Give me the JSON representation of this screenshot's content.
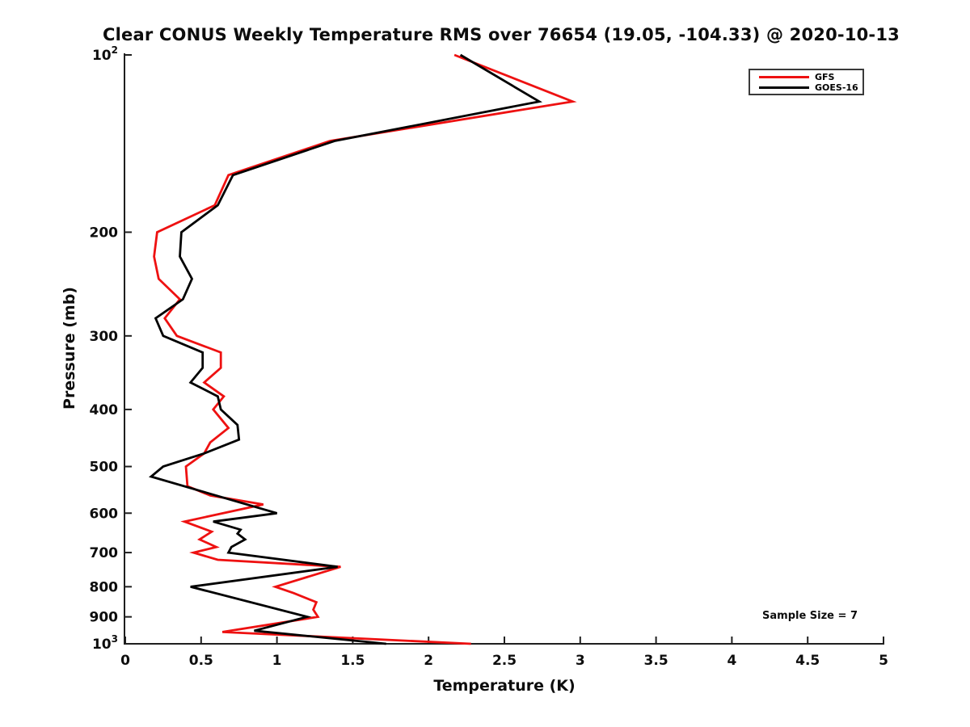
{
  "title": "Clear CONUS Weekly Temperature RMS over 76654 (19.05, -104.33) @ 2020-10-13",
  "annotations": {
    "sample_size_label": "Sample Size = 7"
  },
  "legend": {
    "entries": [
      {
        "label": "GFS",
        "color": "#ee1111"
      },
      {
        "label": "GOES-16",
        "color": "#000000"
      }
    ]
  },
  "chart_data": {
    "type": "line",
    "title": "Clear CONUS Weekly Temperature RMS over 76654 (19.05, -104.33) @ 2020-10-13",
    "xlabel": "Temperature (K)",
    "ylabel": "Pressure (mb)",
    "xlim": [
      0,
      5
    ],
    "x_ticks": [
      0,
      0.5,
      1,
      1.5,
      2,
      2.5,
      3,
      3.5,
      4,
      4.5,
      5
    ],
    "x_tick_labels": [
      "0",
      "0.5",
      "1",
      "1.5",
      "2",
      "2.5",
      "3",
      "3.5",
      "4",
      "4.5",
      "5"
    ],
    "y_scale": "log",
    "y_axis_reversed": true,
    "ylim": [
      100,
      1000
    ],
    "y_ticks": [
      100,
      200,
      300,
      400,
      500,
      600,
      700,
      800,
      900,
      1000
    ],
    "y_tick_labels": [
      "10^2",
      "200",
      "300",
      "400",
      "500",
      "600",
      "700",
      "800",
      "900",
      "10^3"
    ],
    "grid": false,
    "legend_position": "upper right",
    "sample_size": 7,
    "series": [
      {
        "name": "GFS",
        "color": "#ee1111",
        "points_format": [
          "pressure_mb",
          "rms_K"
        ],
        "points": [
          [
            100,
            2.17
          ],
          [
            120,
            2.95
          ],
          [
            140,
            1.35
          ],
          [
            160,
            0.68
          ],
          [
            180,
            0.59
          ],
          [
            200,
            0.21
          ],
          [
            220,
            0.19
          ],
          [
            240,
            0.22
          ],
          [
            260,
            0.36
          ],
          [
            280,
            0.26
          ],
          [
            300,
            0.34
          ],
          [
            320,
            0.63
          ],
          [
            340,
            0.63
          ],
          [
            360,
            0.52
          ],
          [
            380,
            0.65
          ],
          [
            400,
            0.58
          ],
          [
            430,
            0.68
          ],
          [
            455,
            0.56
          ],
          [
            475,
            0.52
          ],
          [
            500,
            0.4
          ],
          [
            540,
            0.41
          ],
          [
            560,
            0.56
          ],
          [
            580,
            0.91
          ],
          [
            620,
            0.39
          ],
          [
            645,
            0.57
          ],
          [
            665,
            0.49
          ],
          [
            685,
            0.6
          ],
          [
            700,
            0.45
          ],
          [
            720,
            0.61
          ],
          [
            740,
            1.42
          ],
          [
            800,
            0.99
          ],
          [
            820,
            1.11
          ],
          [
            850,
            1.26
          ],
          [
            875,
            1.24
          ],
          [
            900,
            1.27
          ],
          [
            955,
            0.64
          ],
          [
            1000,
            2.28
          ]
        ]
      },
      {
        "name": "GOES-16",
        "color": "#000000",
        "points_format": [
          "pressure_mb",
          "rms_K"
        ],
        "points": [
          [
            100,
            2.21
          ],
          [
            120,
            2.73
          ],
          [
            140,
            1.38
          ],
          [
            160,
            0.71
          ],
          [
            180,
            0.61
          ],
          [
            200,
            0.37
          ],
          [
            220,
            0.36
          ],
          [
            240,
            0.44
          ],
          [
            260,
            0.38
          ],
          [
            280,
            0.2
          ],
          [
            300,
            0.25
          ],
          [
            320,
            0.51
          ],
          [
            340,
            0.51
          ],
          [
            360,
            0.43
          ],
          [
            380,
            0.61
          ],
          [
            400,
            0.63
          ],
          [
            425,
            0.74
          ],
          [
            450,
            0.75
          ],
          [
            475,
            0.52
          ],
          [
            500,
            0.25
          ],
          [
            520,
            0.17
          ],
          [
            600,
            1.0
          ],
          [
            620,
            0.58
          ],
          [
            640,
            0.76
          ],
          [
            650,
            0.74
          ],
          [
            665,
            0.79
          ],
          [
            685,
            0.7
          ],
          [
            700,
            0.68
          ],
          [
            740,
            1.4
          ],
          [
            800,
            0.43
          ],
          [
            900,
            1.2
          ],
          [
            950,
            0.85
          ],
          [
            1000,
            1.72
          ]
        ]
      }
    ]
  }
}
